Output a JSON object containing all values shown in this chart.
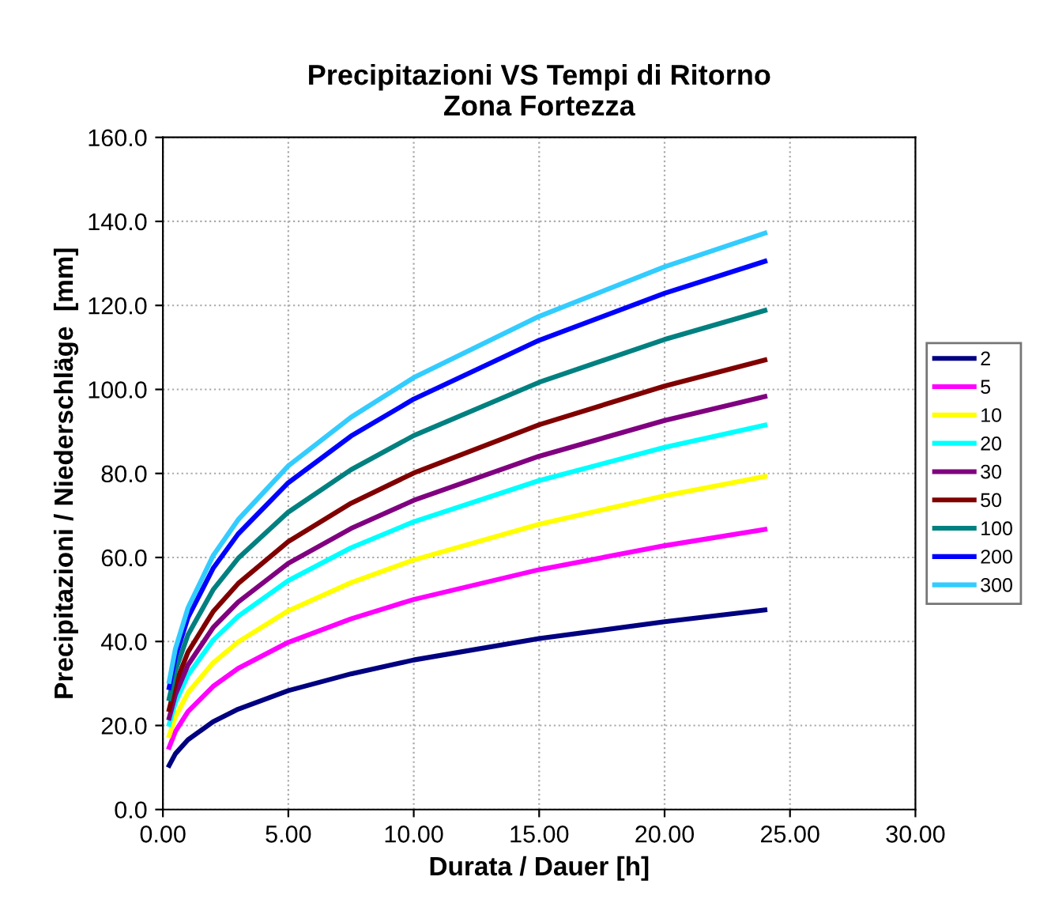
{
  "chart_data": {
    "type": "line",
    "title": "Precipitazioni VS Tempi di Ritorno\nZona Fortezza",
    "xlabel": "Durata / Dauer [h]",
    "ylabel": "Precipitazioni / Niederschläge  [mm]",
    "x": [
      0.25,
      0.5,
      1,
      2,
      3,
      5,
      7.5,
      10,
      15,
      20,
      24
    ],
    "series": [
      {
        "name": "2",
        "color": "#000080",
        "values": [
          10.5,
          13.3,
          16.6,
          20.9,
          23.9,
          28.3,
          32.3,
          35.6,
          40.7,
          44.7,
          47.5
        ]
      },
      {
        "name": "5",
        "color": "#ff00ff",
        "values": [
          14.8,
          18.6,
          23.3,
          29.3,
          33.6,
          39.8,
          45.4,
          50.0,
          57.1,
          62.8,
          66.7
        ]
      },
      {
        "name": "10",
        "color": "#ffff00",
        "values": [
          17.6,
          22.1,
          27.8,
          34.9,
          39.9,
          47.3,
          54.0,
          59.4,
          67.9,
          74.7,
          79.3
        ]
      },
      {
        "name": "20",
        "color": "#00ffff",
        "values": [
          20.3,
          25.5,
          32.0,
          40.3,
          46.0,
          54.5,
          62.3,
          68.5,
          78.3,
          86.2,
          91.5
        ]
      },
      {
        "name": "30",
        "color": "#800080",
        "values": [
          21.8,
          27.4,
          34.4,
          43.3,
          49.4,
          58.6,
          66.9,
          73.6,
          84.1,
          92.6,
          98.3
        ]
      },
      {
        "name": "50",
        "color": "#800000",
        "values": [
          23.8,
          29.9,
          37.5,
          47.1,
          53.8,
          63.8,
          72.9,
          80.1,
          91.6,
          100.8,
          107.0
        ]
      },
      {
        "name": "100",
        "color": "#008080",
        "values": [
          26.4,
          33.1,
          41.6,
          52.3,
          59.8,
          70.8,
          80.9,
          89.0,
          101.7,
          111.9,
          118.8
        ]
      },
      {
        "name": "200",
        "color": "#0000ff",
        "values": [
          29.0,
          36.4,
          45.7,
          57.4,
          65.6,
          77.8,
          88.9,
          97.7,
          111.7,
          122.9,
          130.5
        ]
      },
      {
        "name": "300",
        "color": "#33ccff",
        "values": [
          30.5,
          38.3,
          48.0,
          60.4,
          69.0,
          81.8,
          93.4,
          102.8,
          117.4,
          129.2,
          137.2
        ]
      }
    ],
    "xlim": [
      0,
      30
    ],
    "xticks": [
      {
        "value": 0,
        "label": "0.00"
      },
      {
        "value": 5,
        "label": "5.00"
      },
      {
        "value": 10,
        "label": "10.00"
      },
      {
        "value": 15,
        "label": "15.00"
      },
      {
        "value": 20,
        "label": "20.00"
      },
      {
        "value": 25,
        "label": "25.00"
      },
      {
        "value": 30,
        "label": "30.00"
      }
    ],
    "ylim": [
      0,
      160
    ],
    "yticks": [
      {
        "value": 0,
        "label": "0.0"
      },
      {
        "value": 20,
        "label": "20.0"
      },
      {
        "value": 40,
        "label": "40.0"
      },
      {
        "value": 60,
        "label": "60.0"
      },
      {
        "value": 80,
        "label": "80.0"
      },
      {
        "value": 100,
        "label": "100.0"
      },
      {
        "value": 120,
        "label": "120.0"
      },
      {
        "value": 140,
        "label": "140.0"
      },
      {
        "value": 160,
        "label": "160.0"
      }
    ],
    "grid": true,
    "legend": "right",
    "marker": "none",
    "line_style": "solid"
  }
}
